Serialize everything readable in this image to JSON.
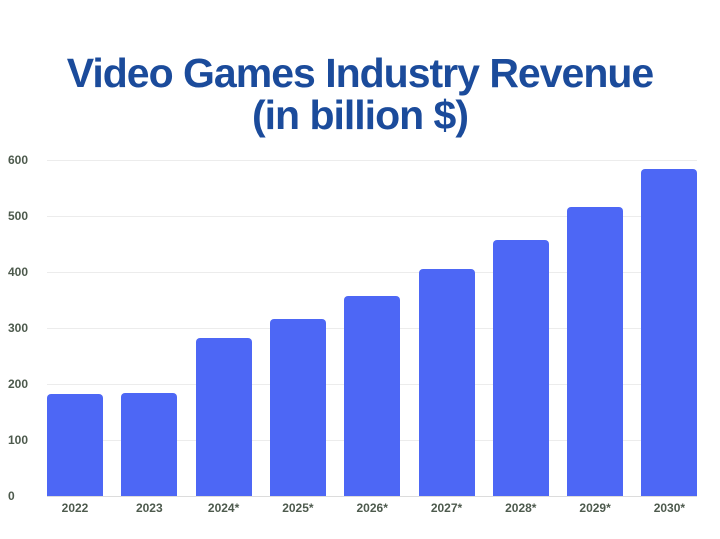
{
  "chart_data": {
    "type": "bar",
    "title": "Video Games Industry Revenue (in billion $)",
    "title_lines": [
      "Video Games Industry Revenue",
      "(in billion $)"
    ],
    "xlabel": "",
    "ylabel": "",
    "categories": [
      "2022",
      "2023",
      "2024*",
      "2025*",
      "2026*",
      "2027*",
      "2028*",
      "2029*",
      "2030*"
    ],
    "values": [
      182,
      184,
      282,
      316,
      357,
      405,
      457,
      516,
      584
    ],
    "ylim": [
      0,
      600
    ],
    "yticks": [
      0,
      100,
      200,
      300,
      400,
      500,
      600
    ],
    "grid": true,
    "legend": null,
    "colors": {
      "bar": "#4d67f5",
      "title": "#1b4b9b",
      "tick_label": "#4d5a4d"
    }
  }
}
